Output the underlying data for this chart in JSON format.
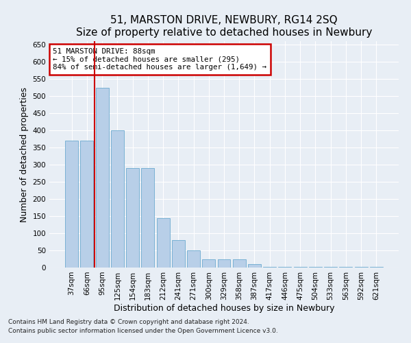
{
  "title": "51, MARSTON DRIVE, NEWBURY, RG14 2SQ",
  "subtitle": "Size of property relative to detached houses in Newbury",
  "xlabel": "Distribution of detached houses by size in Newbury",
  "ylabel": "Number of detached properties",
  "categories": [
    "37sqm",
    "66sqm",
    "95sqm",
    "125sqm",
    "154sqm",
    "183sqm",
    "212sqm",
    "241sqm",
    "271sqm",
    "300sqm",
    "329sqm",
    "358sqm",
    "387sqm",
    "417sqm",
    "446sqm",
    "475sqm",
    "504sqm",
    "533sqm",
    "563sqm",
    "592sqm",
    "621sqm"
  ],
  "values": [
    370,
    370,
    525,
    400,
    290,
    290,
    145,
    80,
    50,
    25,
    25,
    25,
    10,
    3,
    3,
    3,
    3,
    3,
    3,
    3,
    3
  ],
  "bar_color": "#b8cfe8",
  "bar_edge_color": "#6baad0",
  "red_line_x": 1.5,
  "annotation_title": "51 MARSTON DRIVE: 88sqm",
  "annotation_line1": "← 15% of detached houses are smaller (295)",
  "annotation_line2": "84% of semi-detached houses are larger (1,649) →",
  "annotation_box_color": "#ffffff",
  "annotation_box_edge": "#cc0000",
  "red_line_color": "#cc0000",
  "ylim": [
    0,
    660
  ],
  "yticks": [
    0,
    50,
    100,
    150,
    200,
    250,
    300,
    350,
    400,
    450,
    500,
    550,
    600,
    650
  ],
  "footer1": "Contains HM Land Registry data © Crown copyright and database right 2024.",
  "footer2": "Contains public sector information licensed under the Open Government Licence v3.0.",
  "background_color": "#e8eef5",
  "plot_background": "#e8eef5",
  "title_fontsize": 11,
  "tick_fontsize": 7.5,
  "label_fontsize": 9,
  "footer_fontsize": 6.5
}
